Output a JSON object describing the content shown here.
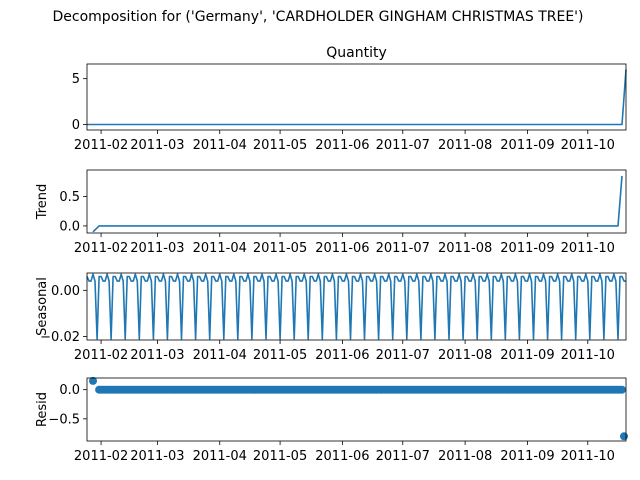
{
  "figure_title": "Decomposition for ('Germany', 'CARDHOLDER GINGHAM CHRISTMAS TREE')",
  "colors": {
    "series": "#1f77b4"
  },
  "x_tick_labels": [
    "2011-02",
    "2011-03",
    "2011-04",
    "2011-05",
    "2011-06",
    "2011-07",
    "2011-08",
    "2011-09",
    "2011-10"
  ],
  "chart_data": [
    {
      "type": "line",
      "title": "Quantity",
      "ylabel": "",
      "xlim": [
        "2011-01-25",
        "2011-10-20"
      ],
      "ylim": [
        -0.6,
        6.6
      ],
      "yticks": [
        0,
        5
      ],
      "ytick_labels": [
        "0",
        "5"
      ],
      "series": [
        {
          "points": [
            [
              "2011-01-25",
              0
            ],
            [
              "2011-10-18",
              0
            ],
            [
              "2011-10-20",
              6
            ]
          ]
        }
      ]
    },
    {
      "type": "line",
      "title": "",
      "ylabel": "Trend",
      "xlim": [
        "2011-01-25",
        "2011-10-20"
      ],
      "ylim": [
        -0.12,
        0.95
      ],
      "yticks": [
        0.0,
        0.5
      ],
      "ytick_labels": [
        "0.0",
        "0.5"
      ],
      "series": [
        {
          "points": [
            [
              "2011-01-28",
              -0.1
            ],
            [
              "2011-01-31",
              0
            ],
            [
              "2011-10-16",
              0
            ],
            [
              "2011-10-18",
              0.85
            ]
          ]
        }
      ]
    },
    {
      "type": "line",
      "title": "",
      "ylabel": "Seasonal",
      "xlim": [
        "2011-01-25",
        "2011-10-20"
      ],
      "ylim": [
        -0.0215,
        0.0075
      ],
      "yticks": [
        0.0,
        -0.02
      ],
      "ytick_labels": [
        "0.00",
        "−0.02"
      ],
      "period_days": 7,
      "first_date": "2011-01-25",
      "last_date": "2011-10-20",
      "weekly_pattern": [
        0.006,
        0.004,
        0.004,
        0.007,
        0.004,
        -0.021,
        0.006
      ]
    },
    {
      "type": "scatter",
      "title": "",
      "ylabel": "Resid",
      "xlim": [
        "2011-01-25",
        "2011-10-20"
      ],
      "ylim": [
        -0.88,
        0.2
      ],
      "yticks": [
        0.0,
        -0.5
      ],
      "ytick_labels": [
        "0.0",
        "−0.5"
      ],
      "baseline_value": 0.0,
      "baseline_first_date": "2011-01-31",
      "baseline_last_date": "2011-10-18",
      "outliers": [
        [
          "2011-01-28",
          0.15
        ],
        [
          "2011-10-19",
          -0.8
        ]
      ]
    }
  ]
}
